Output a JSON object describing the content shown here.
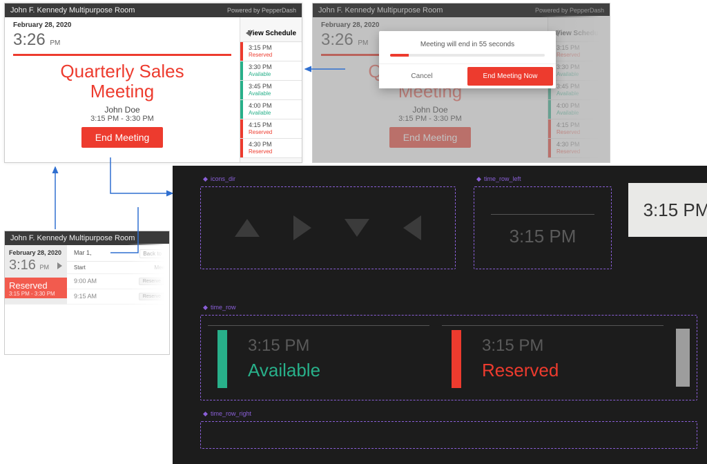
{
  "panel1": {
    "header": {
      "room": "John F. Kennedy Multipurpose Room",
      "powered": "Powered by PepperDash"
    },
    "date": "February 28, 2020",
    "time": "3:26",
    "ampm": "PM",
    "meeting_title_l1": "Quarterly Sales",
    "meeting_title_l2": "Meeting",
    "organizer": "John Doe",
    "range": "3:15 PM - 3:30 PM",
    "end_button": "End Meeting",
    "view_schedule": "View Schedule",
    "slots": [
      {
        "time": "3:15 PM",
        "status": "Reserved",
        "color": "#ed3b2e"
      },
      {
        "time": "3:30 PM",
        "status": "Available",
        "color": "#28b08a"
      },
      {
        "time": "3:45 PM",
        "status": "Available",
        "color": "#28b08a"
      },
      {
        "time": "4:00 PM",
        "status": "Available",
        "color": "#28b08a"
      },
      {
        "time": "4:15 PM",
        "status": "Reserved",
        "color": "#ed3b2e"
      },
      {
        "time": "4:30 PM",
        "status": "Reserved",
        "color": "#ed3b2e"
      }
    ]
  },
  "panel2": {
    "modal_text": "Meeting will end in 55 seconds",
    "progress_pct": 12,
    "cancel": "Cancel",
    "end_now": "End Meeting Now"
  },
  "panel3": {
    "room": "John F. Kennedy Multipurpose Room",
    "date": "February 28, 2020",
    "time": "3:16",
    "ampm": "PM",
    "reserved_label": "Reserved",
    "reserved_range": "3:15 PM - 3:30 PM",
    "next_date": "Mar 1,",
    "back": "Back to",
    "col_start": "Start",
    "col_mee": "Mee",
    "rows": [
      {
        "time": "9:00 AM",
        "chip": "Reserve"
      },
      {
        "time": "9:15 AM",
        "chip": "Reserve"
      }
    ]
  },
  "dark": {
    "labels": {
      "icons_dir": "icons_dir",
      "time_row_left": "time_row_left",
      "time_row": "time_row",
      "time_row_right": "time_row_right"
    },
    "time_left": "3:15 PM",
    "time_chip": "3:15 PM",
    "row_cells": [
      {
        "time": "3:15 PM",
        "status": "Available",
        "bar": "#28b08a",
        "text": "#28b08a"
      },
      {
        "time": "3:15 PM",
        "status": "Reserved",
        "bar": "#ed3b2e",
        "text": "#ed3b2e"
      }
    ],
    "colors": {
      "canvas_bg": "#1c1c1c",
      "dash": "#8a5fd8",
      "tri": "#3b3b3b",
      "dim_text": "#5a5a5a",
      "chip_bg": "#e9e9e7",
      "tail": "#9d9d9d"
    }
  },
  "connectors": {
    "stroke": "#2f6fd0"
  }
}
